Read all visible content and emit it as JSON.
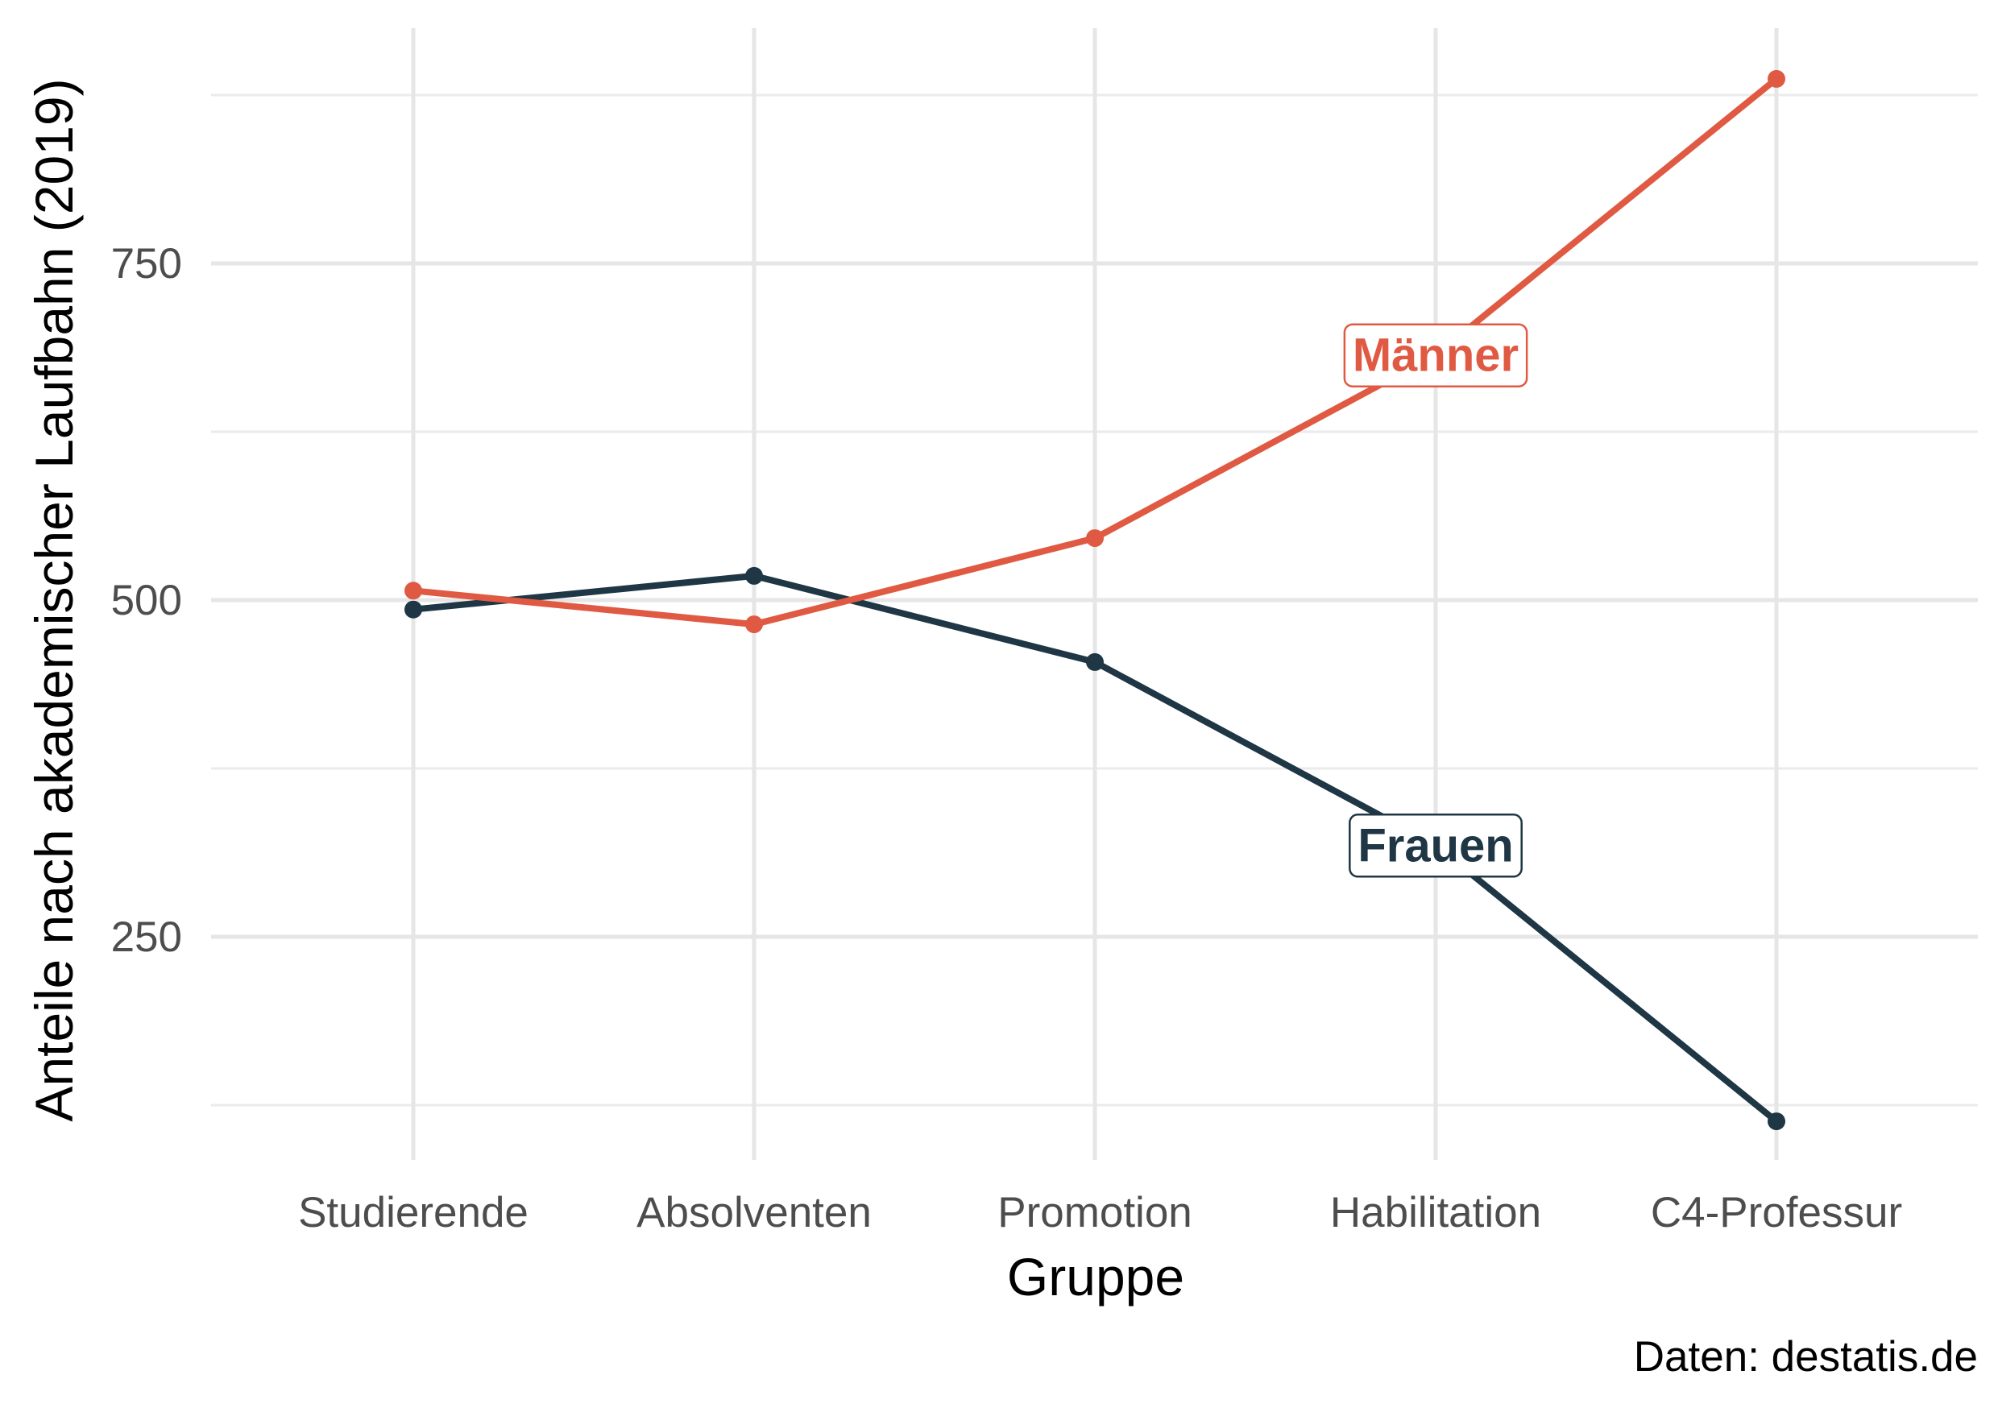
{
  "chart_data": {
    "type": "line",
    "title": "",
    "xlabel": "Gruppe",
    "ylabel": "Anteile nach akademischer Laufbahn (2019)",
    "caption": "Daten: destatis.de",
    "categories": [
      "Studierende",
      "Absolventen",
      "Promotion",
      "Habilitation",
      "C4-Professur"
    ],
    "series": [
      {
        "name": "Männer",
        "color": "#E05A43",
        "values": [
          507,
          482,
          546,
          682,
          887
        ],
        "label_index": 3
      },
      {
        "name": "Frauen",
        "color": "#1F3645",
        "values": [
          493,
          518,
          454,
          318,
          113
        ],
        "label_index": 3
      }
    ],
    "ylim": [
      75,
      930
    ],
    "yticks": [
      250,
      500,
      750
    ],
    "yminor": [
      125,
      375,
      625,
      875
    ],
    "grid": true,
    "legend": "direct labels on lines"
  }
}
